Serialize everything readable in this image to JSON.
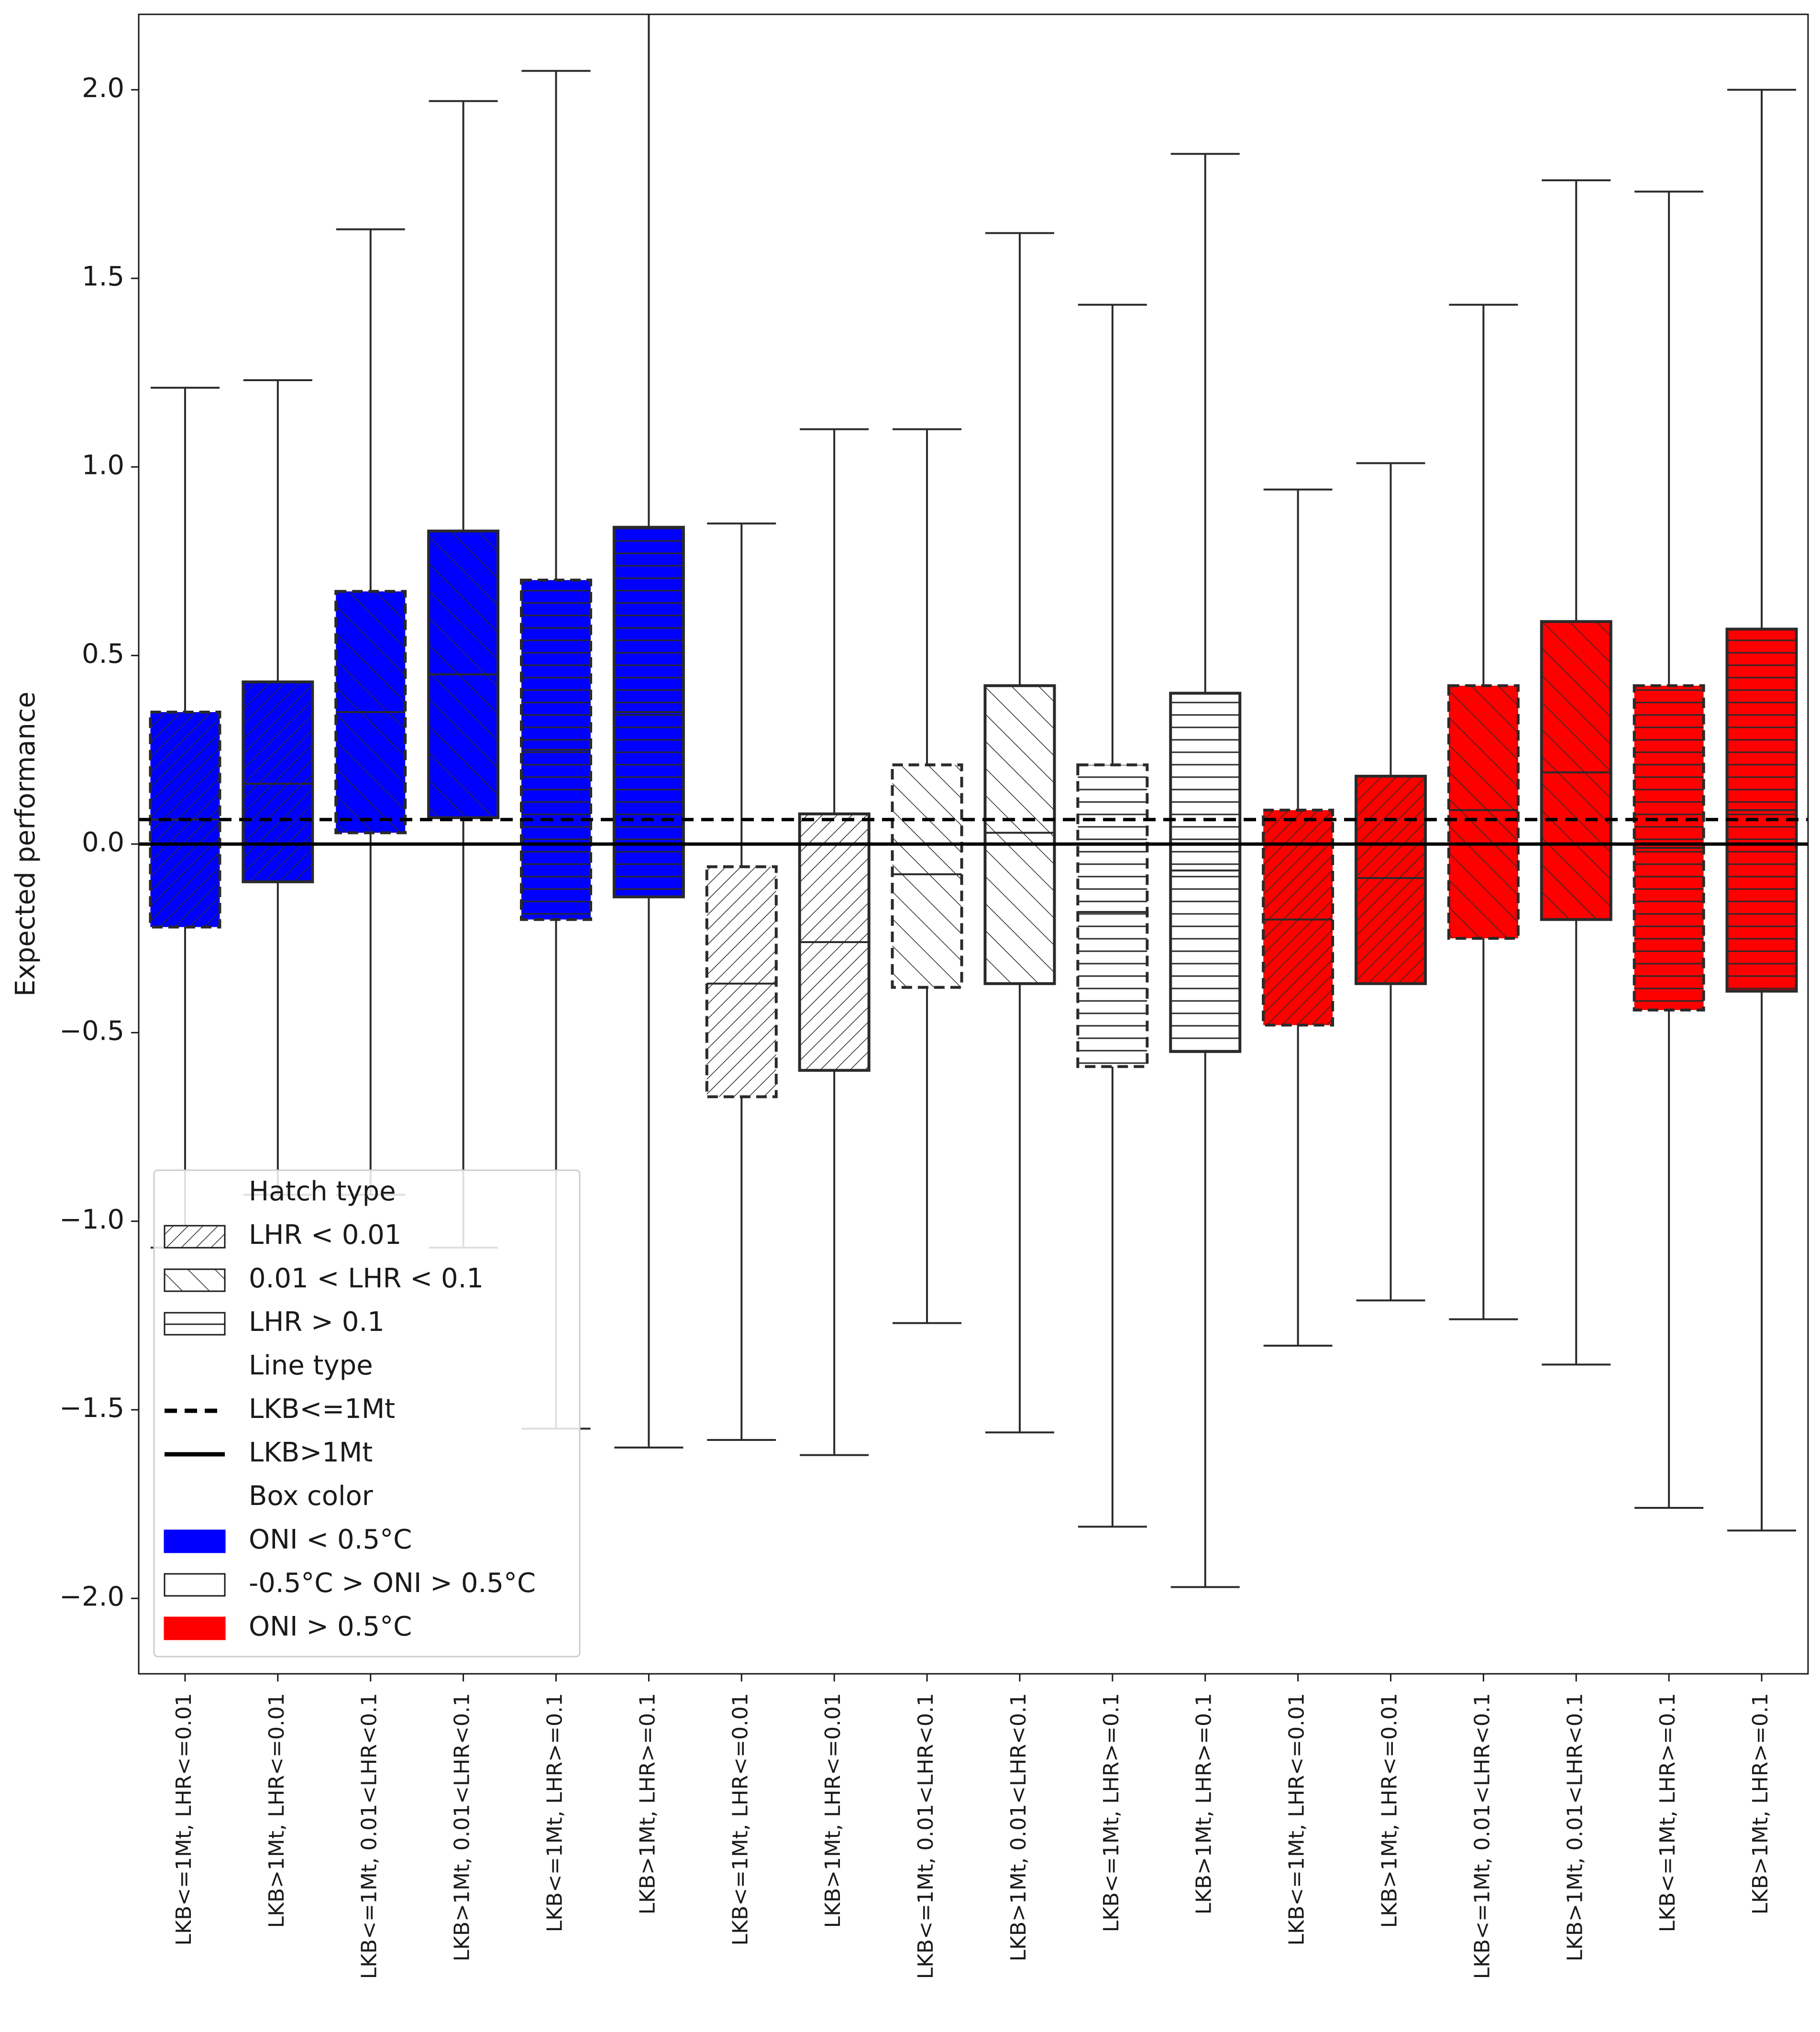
{
  "chart_data": {
    "type": "box",
    "ylabel": "Expected performance",
    "ylim": [
      -2.2,
      2.2
    ],
    "yticks": [
      2.0,
      1.5,
      1.0,
      0.5,
      0.0,
      -0.5,
      -1.0,
      -1.5,
      -2.0
    ],
    "ytick_labels": [
      "2.0",
      "1.5",
      "1.0",
      "0.5",
      "0.0",
      "−0.5",
      "−1.0",
      "−1.5",
      "−2.0"
    ],
    "grid": false,
    "reference_lines": [
      {
        "y": 0.065,
        "style": "dashed"
      },
      {
        "y": 0.0,
        "style": "solid"
      }
    ],
    "colors": {
      "ONI < 0.5°C": "#0000ff",
      "-0.5°C > ONI > 0.5°C": "#ffffff",
      "ONI > 0.5°C": "#ff0000"
    },
    "boxes": [
      {
        "label": "LKB<=1Mt, LHR<=0.01",
        "whislo": -1.07,
        "q1": -0.22,
        "med": 0.065,
        "q3": 0.35,
        "whishi": 1.21,
        "color": "#0000ff",
        "hatch": "lhr-low",
        "line": "dashed"
      },
      {
        "label": "LKB>1Mt, LHR<=0.01",
        "whislo": -0.93,
        "q1": -0.1,
        "med": 0.16,
        "q3": 0.43,
        "whishi": 1.23,
        "color": "#0000ff",
        "hatch": "lhr-low",
        "line": "solid"
      },
      {
        "label": "LKB<=1Mt, 0.01<LHR<0.1",
        "whislo": -0.93,
        "q1": 0.03,
        "med": 0.35,
        "q3": 0.67,
        "whishi": 1.63,
        "color": "#0000ff",
        "hatch": "lhr-mid",
        "line": "dashed"
      },
      {
        "label": "LKB>1Mt, 0.01<LHR<0.1",
        "whislo": -1.07,
        "q1": 0.07,
        "med": 0.45,
        "q3": 0.83,
        "whishi": 1.97,
        "color": "#0000ff",
        "hatch": "lhr-mid",
        "line": "solid"
      },
      {
        "label": "LKB<=1Mt, LHR>=0.1",
        "whislo": -1.55,
        "q1": -0.2,
        "med": 0.25,
        "q3": 0.7,
        "whishi": 2.05,
        "color": "#0000ff",
        "hatch": "lhr-high",
        "line": "dashed"
      },
      {
        "label": "LKB>1Mt, LHR>=0.1",
        "whislo": -1.6,
        "q1": -0.14,
        "med": 0.35,
        "q3": 0.84,
        "whishi": 2.3,
        "color": "#0000ff",
        "hatch": "lhr-high",
        "line": "solid"
      },
      {
        "label": "LKB<=1Mt, LHR<=0.01",
        "whislo": -1.58,
        "q1": -0.67,
        "med": -0.37,
        "q3": -0.06,
        "whishi": 0.85,
        "color": "#ffffff",
        "hatch": "lhr-low",
        "line": "dashed"
      },
      {
        "label": "LKB>1Mt, LHR<=0.01",
        "whislo": -1.62,
        "q1": -0.6,
        "med": -0.26,
        "q3": 0.08,
        "whishi": 1.1,
        "color": "#ffffff",
        "hatch": "lhr-low",
        "line": "solid"
      },
      {
        "label": "LKB<=1Mt, 0.01<LHR<0.1",
        "whislo": -1.27,
        "q1": -0.38,
        "med": -0.08,
        "q3": 0.21,
        "whishi": 1.1,
        "color": "#ffffff",
        "hatch": "lhr-mid",
        "line": "dashed"
      },
      {
        "label": "LKB>1Mt, 0.01<LHR<0.1",
        "whislo": -1.56,
        "q1": -0.37,
        "med": 0.03,
        "q3": 0.42,
        "whishi": 1.62,
        "color": "#ffffff",
        "hatch": "lhr-mid",
        "line": "solid"
      },
      {
        "label": "LKB<=1Mt, LHR>=0.1",
        "whislo": -1.81,
        "q1": -0.59,
        "med": -0.18,
        "q3": 0.21,
        "whishi": 1.43,
        "color": "#ffffff",
        "hatch": "lhr-high",
        "line": "dashed"
      },
      {
        "label": "LKB>1Mt, LHR>=0.1",
        "whislo": -1.97,
        "q1": -0.55,
        "med": -0.07,
        "q3": 0.4,
        "whishi": 1.83,
        "color": "#ffffff",
        "hatch": "lhr-high",
        "line": "solid"
      },
      {
        "label": "LKB<=1Mt, LHR<=0.01",
        "whislo": -1.33,
        "q1": -0.48,
        "med": -0.2,
        "q3": 0.09,
        "whishi": 0.94,
        "color": "#ff0000",
        "hatch": "lhr-low",
        "line": "dashed"
      },
      {
        "label": "LKB>1Mt, LHR<=0.01",
        "whislo": -1.21,
        "q1": -0.37,
        "med": -0.09,
        "q3": 0.18,
        "whishi": 1.01,
        "color": "#ff0000",
        "hatch": "lhr-low",
        "line": "solid"
      },
      {
        "label": "LKB<=1Mt, 0.01<LHR<0.1",
        "whislo": -1.26,
        "q1": -0.25,
        "med": 0.09,
        "q3": 0.42,
        "whishi": 1.43,
        "color": "#ff0000",
        "hatch": "lhr-mid",
        "line": "dashed"
      },
      {
        "label": "LKB>1Mt, 0.01<LHR<0.1",
        "whislo": -1.38,
        "q1": -0.2,
        "med": 0.19,
        "q3": 0.59,
        "whishi": 1.76,
        "color": "#ff0000",
        "hatch": "lhr-mid",
        "line": "solid"
      },
      {
        "label": "LKB<=1Mt, LHR>=0.1",
        "whislo": -1.76,
        "q1": -0.44,
        "med": -0.01,
        "q3": 0.42,
        "whishi": 1.73,
        "color": "#ff0000",
        "hatch": "lhr-high",
        "line": "dashed"
      },
      {
        "label": "LKB>1Mt, LHR>=0.1",
        "whislo": -1.82,
        "q1": -0.39,
        "med": 0.09,
        "q3": 0.57,
        "whishi": 2.0,
        "color": "#ff0000",
        "hatch": "lhr-high",
        "line": "solid"
      }
    ],
    "legend": {
      "placement": "lower-left",
      "sections": [
        {
          "title": "Hatch type",
          "items": [
            {
              "label": "LHR < 0.01",
              "kind": "hatch",
              "hatch": "lhr-low"
            },
            {
              "label": "0.01 < LHR < 0.1",
              "kind": "hatch",
              "hatch": "lhr-mid"
            },
            {
              "label": "LHR > 0.1",
              "kind": "hatch",
              "hatch": "lhr-high"
            }
          ]
        },
        {
          "title": "Line type",
          "items": [
            {
              "label": "LKB<=1Mt",
              "kind": "line",
              "style": "dashed"
            },
            {
              "label": "LKB>1Mt",
              "kind": "line",
              "style": "solid"
            }
          ]
        },
        {
          "title": "Box color",
          "items": [
            {
              "label": "ONI < 0.5°C",
              "kind": "fill",
              "color": "#0000ff"
            },
            {
              "label": "-0.5°C > ONI > 0.5°C",
              "kind": "fill",
              "color": "#ffffff"
            },
            {
              "label": "ONI > 0.5°C",
              "kind": "fill",
              "color": "#ff0000"
            }
          ]
        }
      ]
    }
  }
}
